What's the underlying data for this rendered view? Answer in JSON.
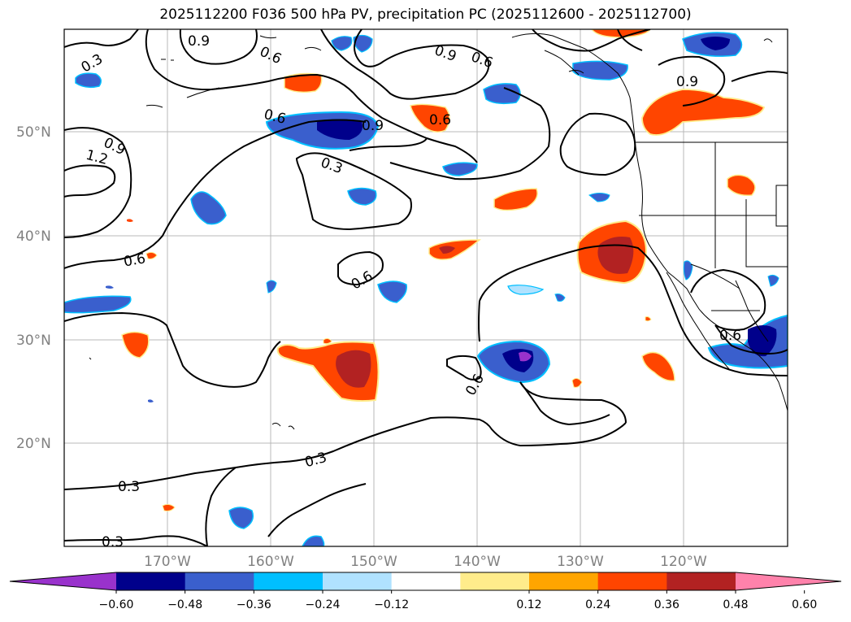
{
  "title": "2025112200 F036 500 hPa PV, precipitation PC (2025112600 - 2025112700)",
  "lat_labels": [
    "50°N",
    "40°N",
    "30°N",
    "20°N"
  ],
  "lon_labels": [
    "170°W",
    "160°W",
    "150°W",
    "140°W",
    "130°W",
    "120°W"
  ],
  "contour_labels": [
    "0.9",
    "0.3",
    "0.6",
    "0.9",
    "0.6",
    "0.6",
    "0.9",
    "0.9",
    "1.2",
    "0.3",
    "0.6",
    "0.6",
    "0.6",
    "0.6",
    "0.3",
    "0.3",
    "0.3",
    "0.9"
  ],
  "colorbar": {
    "ticks": [
      "−0.60",
      "−0.48",
      "−0.36",
      "−0.24",
      "−0.12",
      "0.12",
      "0.24",
      "0.36",
      "0.48",
      "0.60"
    ],
    "colors": [
      "#9932CC",
      "#00008B",
      "#3A5FCD",
      "#00BFFF",
      "#B0E2FF",
      "#FFFFFF",
      "#FFEC8B",
      "#FFA500",
      "#FF4500",
      "#B22222",
      "#FF82AB"
    ]
  },
  "palette": {
    "neg_dark": "#00008B",
    "neg_mid": "#3A5FCD",
    "neg_light": "#00BFFF",
    "neg_pale": "#B0E2FF",
    "pos_pale": "#FFEC8B",
    "pos_light": "#FFA500",
    "pos_mid": "#FF4500",
    "pos_dark": "#B22222",
    "neg_extreme": "#9932CC"
  }
}
